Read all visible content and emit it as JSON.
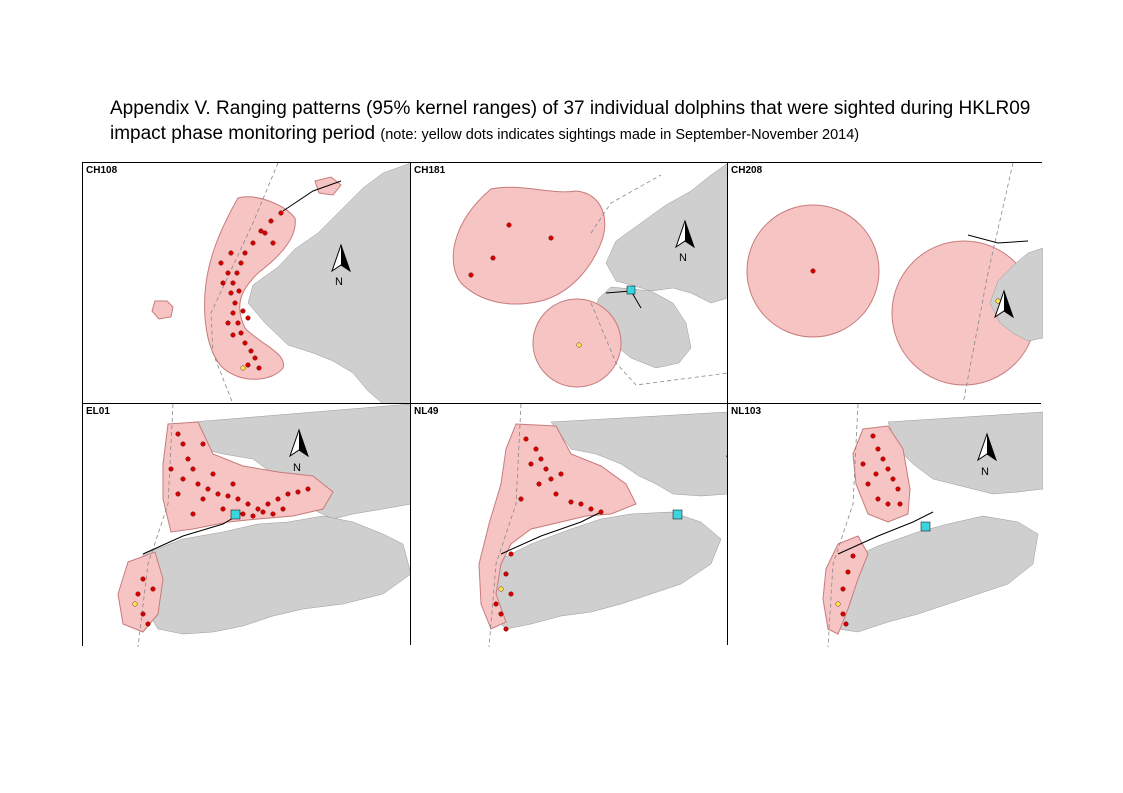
{
  "title": {
    "main": "Appendix V.  Ranging patterns (95% kernel ranges) of 37 individual dolphins that were sighted during HKLR09 impact phase monitoring period",
    "note": "(note: yellow dots indicates sightings made in September-November 2014)"
  },
  "colors": {
    "range_fill": "#f7c4c4",
    "range_stroke": "#c77b7b",
    "land": "#cfcfcf",
    "sighting": "#d40000",
    "sighting_recent": "#f5e84a",
    "bridge": "#3ad6e0"
  },
  "north_label": "N",
  "panels": [
    {
      "id": "CH108",
      "label": "CH108"
    },
    {
      "id": "CH181",
      "label": "CH181"
    },
    {
      "id": "CH208",
      "label": "CH208"
    },
    {
      "id": "EL01",
      "label": "EL01"
    },
    {
      "id": "NL49",
      "label": "NL49"
    },
    {
      "id": "NL103",
      "label": "NL103"
    }
  ]
}
